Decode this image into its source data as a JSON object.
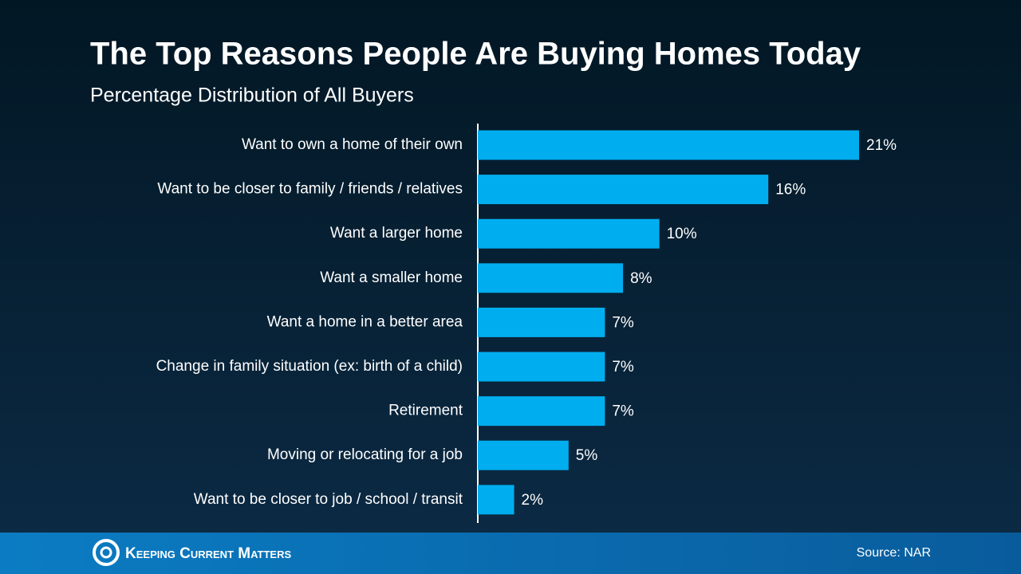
{
  "chart_data": {
    "type": "bar",
    "orientation": "horizontal",
    "title": "The Top Reasons People Are Buying Homes Today",
    "subtitle": "Percentage Distribution of All Buyers",
    "categories": [
      "Want to own a home of their own",
      "Want to be closer to family / friends / relatives",
      "Want a larger home",
      "Want a smaller home",
      "Want a home in a better area",
      "Change in family situation (ex: birth of a child)",
      "Retirement",
      "Moving or relocating for a job",
      "Want to be closer to job / school / transit"
    ],
    "values": [
      21,
      16,
      10,
      8,
      7,
      7,
      7,
      5,
      2
    ],
    "value_labels": [
      "21%",
      "16%",
      "10%",
      "8%",
      "7%",
      "7%",
      "7%",
      "5%",
      "2%"
    ],
    "color": "#00aeef"
  },
  "footer": {
    "brand": "Keeping Current Matters",
    "source": "Source: NAR"
  }
}
